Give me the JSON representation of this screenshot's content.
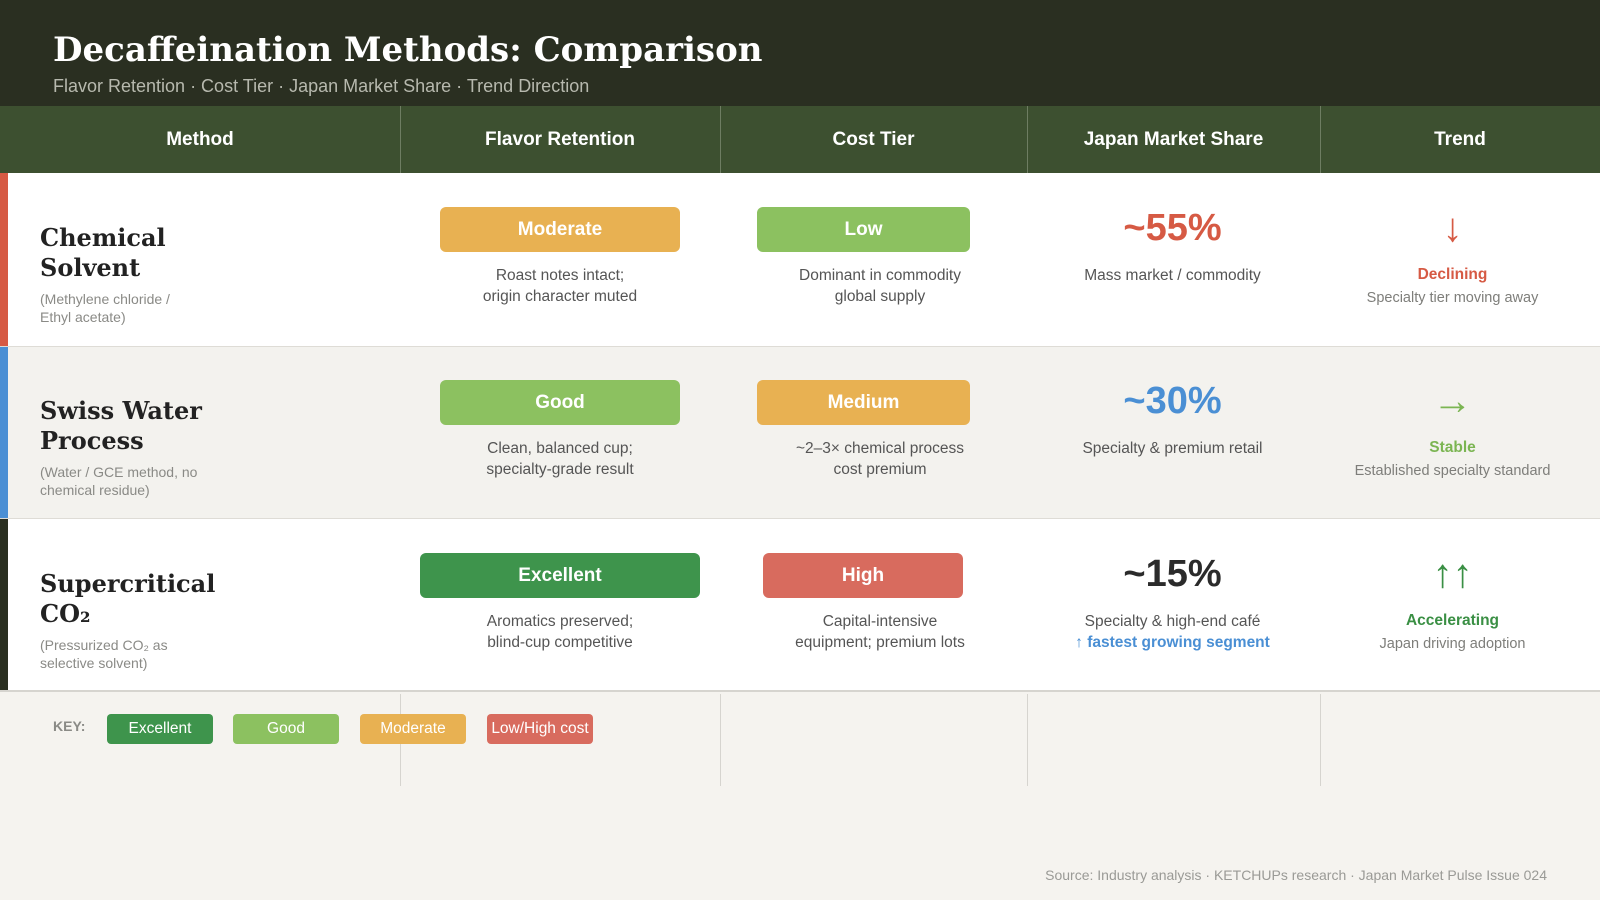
{
  "header": {
    "title": "Decaffeination Methods: Comparison",
    "subtitle": "Flavor Retention · Cost Tier · Japan Market Share · Trend Direction"
  },
  "columns": [
    "Method",
    "Flavor Retention",
    "Cost Tier",
    "Japan Market Share",
    "Trend"
  ],
  "rows": [
    {
      "method": "Chemical Solvent",
      "method_desc": "(Methylene chloride / Ethyl acetate)",
      "accent_color": "#d65a44",
      "flavor": {
        "label": "Moderate",
        "color": "#e8b152",
        "note_line1": "Roast notes intact;",
        "note_line2": "origin character muted"
      },
      "cost": {
        "label": "Low",
        "color": "#8cc160",
        "note_line1": "Dominant in commodity",
        "note_line2": "global supply"
      },
      "share": {
        "value": "~55%",
        "color": "#d65a44",
        "note_line1": "Mass market / commodity",
        "note_line2": ""
      },
      "trend": {
        "icon": "↓",
        "icon_name": "arrow-down-icon",
        "label": "Declining",
        "color": "#d65a44",
        "note": "Specialty tier moving away"
      }
    },
    {
      "method": "Swiss Water Process",
      "method_desc": "(Water / GCE method, no chemical residue)",
      "accent_color": "#4a8fd4",
      "flavor": {
        "label": "Good",
        "color": "#8cc160",
        "note_line1": "Clean, balanced cup;",
        "note_line2": "specialty-grade result"
      },
      "cost": {
        "label": "Medium",
        "color": "#e8b152",
        "note_line1": "~2–3× chemical process",
        "note_line2": "cost premium"
      },
      "share": {
        "value": "~30%",
        "color": "#4a8fd4",
        "note_line1": "Specialty & premium retail",
        "note_line2": ""
      },
      "trend": {
        "icon": "→",
        "icon_name": "arrow-right-icon",
        "label": "Stable",
        "color": "#7bb552",
        "note": "Established specialty standard"
      }
    },
    {
      "method": "Supercritical CO₂",
      "method_desc": "(Pressurized CO₂ as selective solvent)",
      "accent_color": "#2a2f21",
      "flavor": {
        "label": "Excellent",
        "color": "#3e944c",
        "note_line1": "Aromatics preserved;",
        "note_line2": "blind-cup competitive"
      },
      "cost": {
        "label": "High",
        "color": "#d86b5e",
        "note_line1": "Capital-intensive",
        "note_line2": "equipment; premium lots"
      },
      "share": {
        "value": "~15%",
        "color": "#2b2b2b",
        "note_line1": "Specialty & high-end café",
        "note_line2": "↑ fastest growing segment"
      },
      "trend": {
        "icon": "↑↑",
        "icon_name": "double-arrow-up-icon",
        "label": "Accelerating",
        "color": "#3a8f44",
        "note": "Japan driving adoption"
      }
    }
  ],
  "key": {
    "label": "KEY:",
    "items": [
      {
        "label": "Excellent",
        "color": "#3e944c"
      },
      {
        "label": "Good",
        "color": "#8cc160"
      },
      {
        "label": "Moderate",
        "color": "#e8b152"
      },
      {
        "label": "Low/High cost",
        "color": "#d86b5e"
      }
    ]
  },
  "source": "Source: Industry analysis · KETCHUPs research · Japan Market Pulse Issue 024"
}
